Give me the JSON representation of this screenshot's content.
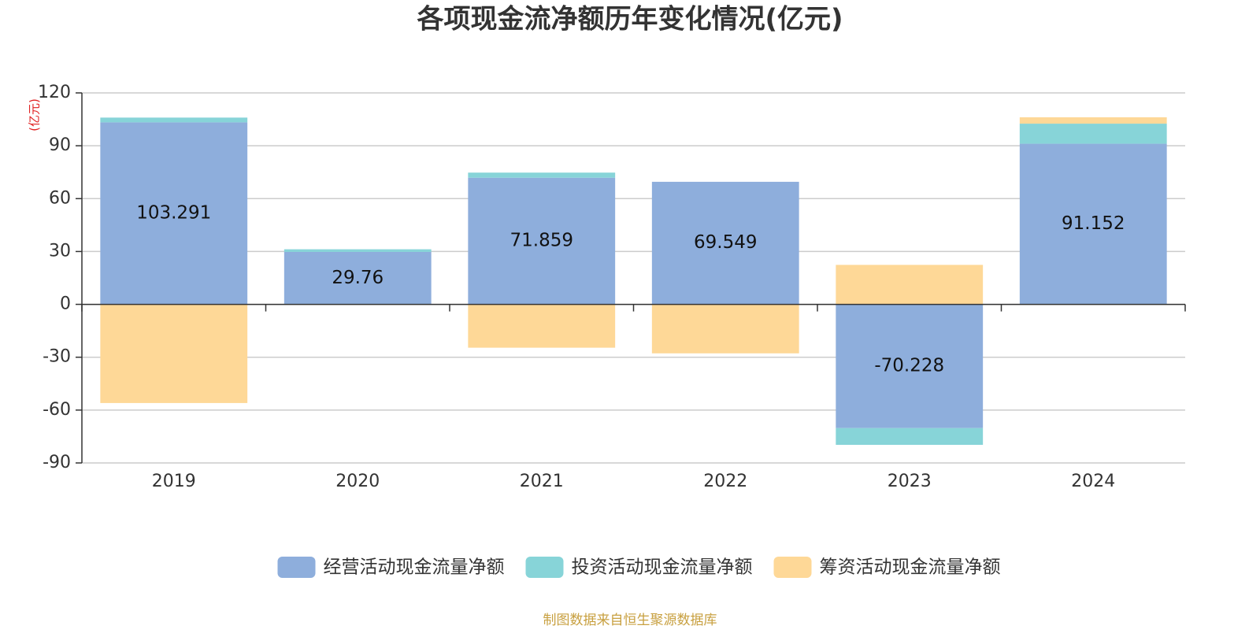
{
  "chart_data": {
    "type": "bar",
    "stacked": true,
    "title": "各项现金流净额历年变化情况(亿元)",
    "y_axis_label": "(亿元)",
    "source": "制图数据来自恒生聚源数据库",
    "categories": [
      "2019",
      "2020",
      "2021",
      "2022",
      "2023",
      "2024"
    ],
    "series": [
      {
        "name": "经营活动现金流量净额",
        "color": "#8eaedc",
        "values": [
          103.291,
          29.76,
          71.859,
          69.549,
          -70.228,
          91.152
        ]
      },
      {
        "name": "投资活动现金流量净额",
        "color": "#87d4d8",
        "values": [
          2.7,
          1.5,
          2.9,
          0,
          -9.5,
          11.4
        ]
      },
      {
        "name": "筹资活动现金流量净额",
        "color": "#fed897",
        "values": [
          -56.0,
          0,
          -24.6,
          -27.8,
          22.4,
          3.6
        ]
      }
    ],
    "label_series": 0,
    "ylim": [
      -90,
      120
    ],
    "yticks": [
      -90,
      -60,
      -30,
      0,
      30,
      60,
      90,
      120
    ],
    "grid": true
  }
}
